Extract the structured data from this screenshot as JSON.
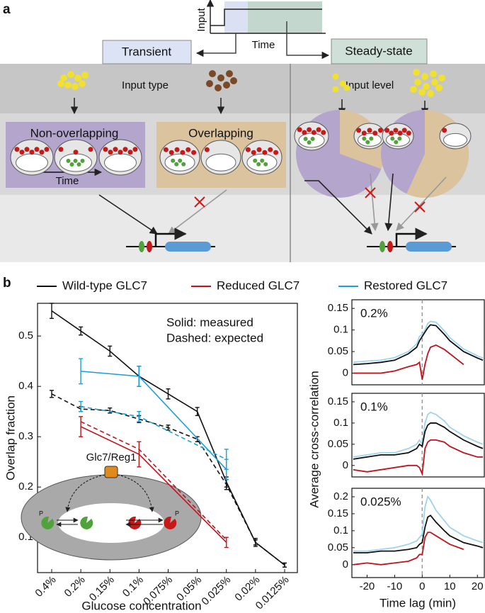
{
  "panel_a": {
    "label": "a",
    "input_axis": "Input",
    "time_axis": "Time",
    "transient": "Transient",
    "steady_state": "Steady-state",
    "input_type": "Input type",
    "input_level": "Input level",
    "non_overlapping": "Non-overlapping",
    "overlapping": "Overlapping",
    "time_arrow": "Time"
  },
  "panel_b": {
    "label": "b",
    "cross_correlation_ylabel": "Average cross-correlation",
    "cross_correlation_xlabel": "Time lag (min)"
  },
  "chart_data": [
    {
      "type": "line",
      "legend": "top",
      "categories": [
        "0.4%",
        "0.2%",
        "0.15%",
        "0.1%",
        "0.075%",
        "0.05%",
        "0.025%",
        "0.02%",
        "0.0125%"
      ],
      "xlabel": "Glucose concentration",
      "ylabel": "Overlap fraction",
      "ylim": [
        0.03,
        0.565
      ],
      "yticks": [
        0.1,
        0.2,
        0.3,
        0.4,
        0.5
      ],
      "annotations": [
        "Solid: measured",
        "Dashed: expected"
      ],
      "inset": {
        "label": "Glc7/Reg1",
        "phospho_left": "P",
        "phospho_right": "P"
      },
      "series": [
        {
          "name": "Wild-type GLC7",
          "color": "#111111",
          "x": [
            "0.4%",
            "0.2%",
            "0.15%",
            "0.1%",
            "0.075%",
            "0.05%",
            "0.025%",
            "0.02%",
            "0.0125%"
          ],
          "values": [
            0.55,
            0.51,
            0.47,
            0.42,
            0.385,
            0.35,
            0.21,
            0.09,
            0.045
          ],
          "errors": [
            0.015,
            0.008,
            0.01,
            0.02,
            0.01,
            0.008,
            0.01,
            0.008,
            0.004
          ],
          "expected": [
            0.385,
            0.355,
            0.352,
            0.335,
            0.318,
            0.295,
            0.205,
            0.09,
            0.045
          ],
          "expected_errors": [
            0.007,
            0.005,
            0.005,
            0.007,
            0.005,
            0.005,
            0.01,
            0.005,
            0.004
          ]
        },
        {
          "name": "Reduced GLC7",
          "color": "#c0141c",
          "x": [
            "0.2%",
            "0.1%",
            "0.025%"
          ],
          "values": [
            0.32,
            0.265,
            0.09
          ],
          "errors": [
            0.02,
            0.025,
            0.01
          ],
          "expected": [
            0.33,
            0.275,
            0.095
          ]
        },
        {
          "name": "Restored GLC7",
          "color": "#1aa0d8",
          "x": [
            "0.2%",
            "0.1%",
            "0.025%"
          ],
          "values": [
            0.43,
            0.42,
            0.235
          ],
          "errors": [
            0.025,
            0.02,
            0.02
          ],
          "expected": [
            0.36,
            0.34,
            0.255
          ],
          "expected_errors": [
            0.01,
            0.01,
            0.02
          ]
        }
      ]
    },
    {
      "type": "line",
      "label": "0.2%",
      "xlim": [
        -25.5,
        22.5
      ],
      "ylim": [
        -0.027,
        0.17
      ],
      "yticks": [
        0,
        0.05,
        0.1,
        0.15
      ],
      "reference_x": 0,
      "x": [
        -25,
        -20,
        -15,
        -10,
        -5,
        -2,
        -1,
        0,
        1,
        2,
        3,
        5,
        8,
        10,
        15,
        20,
        22
      ],
      "series": [
        {
          "color": "#9fd3ee",
          "values": [
            0.025,
            0.028,
            0.03,
            0.036,
            0.05,
            0.068,
            0.085,
            0.09,
            0.1,
            0.115,
            0.12,
            0.118,
            0.098,
            0.082,
            0.056,
            0.04,
            0.035
          ]
        },
        {
          "color": "#c0141c",
          "values": [
            0.0,
            0.0,
            0.0,
            0.005,
            0.015,
            0.02,
            0.025,
            -0.015,
            0.02,
            0.045,
            0.06,
            0.065,
            0.055,
            0.045,
            0.02,
            null,
            null
          ]
        },
        {
          "color": "#111111",
          "values": [
            0.02,
            0.022,
            0.025,
            0.03,
            0.045,
            0.06,
            0.075,
            0.085,
            0.095,
            0.105,
            0.112,
            0.11,
            0.09,
            0.075,
            0.05,
            0.035,
            0.03
          ]
        }
      ]
    },
    {
      "type": "line",
      "label": "0.1%",
      "xlim": [
        -25.5,
        22.5
      ],
      "ylim": [
        -0.027,
        0.17
      ],
      "yticks": [
        0,
        0.05,
        0.1,
        0.15
      ],
      "reference_x": 0,
      "x": [
        -25,
        -20,
        -15,
        -10,
        -5,
        -2,
        -1,
        0,
        1,
        2,
        3,
        5,
        8,
        10,
        15,
        20,
        22
      ],
      "series": [
        {
          "color": "#9fd3ee",
          "values": [
            0.02,
            0.025,
            0.03,
            0.03,
            0.04,
            0.05,
            0.06,
            0.05,
            0.1,
            0.12,
            0.125,
            0.12,
            0.105,
            0.09,
            0.07,
            0.055,
            0.05
          ]
        },
        {
          "color": "#c0141c",
          "values": [
            -0.01,
            -0.015,
            -0.01,
            -0.005,
            0.0,
            0.0,
            -0.005,
            -0.02,
            0.04,
            0.055,
            0.06,
            0.06,
            0.055,
            0.045,
            0.03,
            0.02,
            0.02
          ]
        },
        {
          "color": "#111111",
          "values": [
            0.015,
            0.02,
            0.025,
            0.025,
            0.03,
            0.04,
            0.05,
            0.045,
            0.08,
            0.095,
            0.1,
            0.1,
            0.09,
            0.08,
            0.06,
            0.045,
            0.04
          ]
        }
      ]
    },
    {
      "type": "line",
      "label": "0.025%",
      "xlim": [
        -25.5,
        22.5
      ],
      "xticks": [
        -20,
        -10,
        0,
        10,
        20
      ],
      "ylim": [
        -0.038,
        0.225
      ],
      "yticks": [
        0,
        0.05,
        0.1,
        0.15,
        0.2
      ],
      "reference_x": 0,
      "x": [
        -25,
        -20,
        -15,
        -10,
        -5,
        -2,
        -1,
        0,
        1,
        2,
        3,
        5,
        8,
        10,
        15,
        20,
        22
      ],
      "series": [
        {
          "color": "#9fd3ee",
          "values": [
            0.04,
            0.04,
            0.045,
            0.05,
            0.06,
            0.07,
            0.08,
            0.09,
            0.17,
            0.2,
            0.19,
            0.16,
            0.13,
            0.11,
            0.085,
            0.07,
            0.065
          ]
        },
        {
          "color": "#c0141c",
          "values": [
            0.0,
            0.005,
            0.0,
            0.005,
            0.01,
            0.02,
            0.03,
            0.03,
            0.08,
            0.095,
            0.095,
            0.085,
            0.07,
            0.06,
            0.045,
            null,
            null
          ]
        },
        {
          "color": "#111111",
          "values": [
            0.035,
            0.035,
            0.04,
            0.04,
            0.045,
            0.05,
            0.06,
            0.065,
            0.11,
            0.14,
            0.145,
            0.125,
            0.1,
            0.085,
            0.065,
            0.055,
            0.05
          ]
        }
      ]
    }
  ]
}
